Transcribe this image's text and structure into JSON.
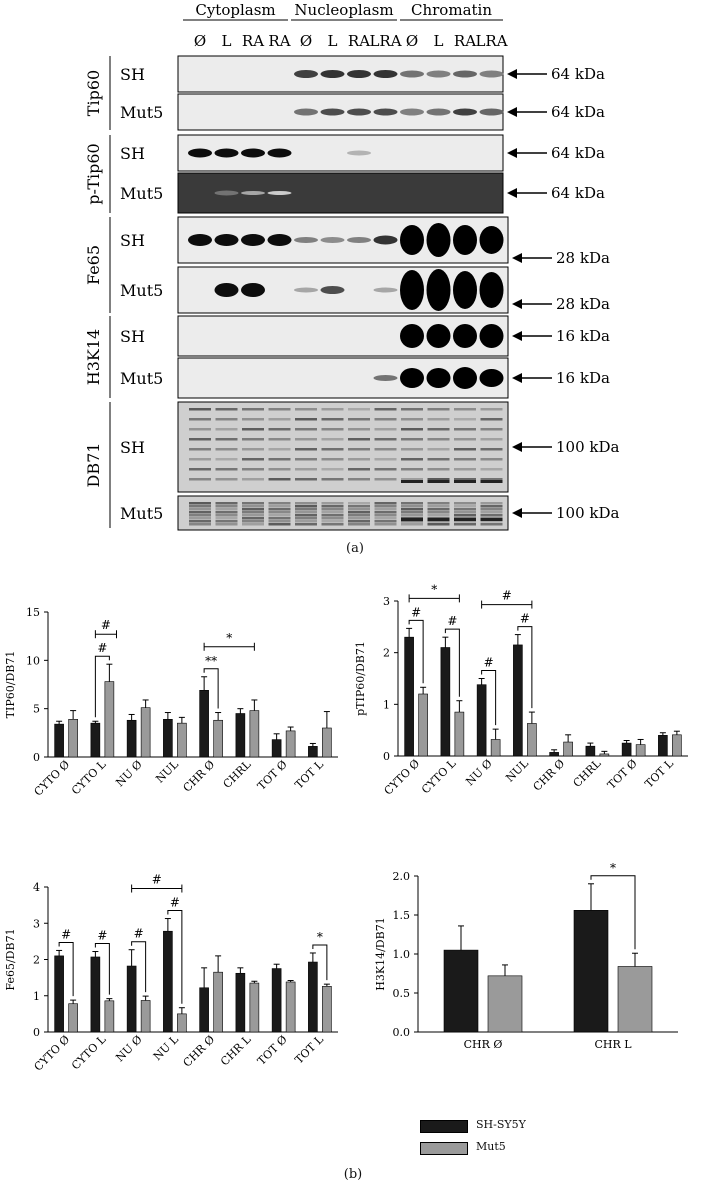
{
  "panel_a": {
    "caption": "(a)",
    "fractions": [
      "Cytoplasm",
      "Nucleoplasm",
      "Chromatin"
    ],
    "lanes": [
      "Ø",
      "L",
      "RA",
      "RA",
      "Ø",
      "L",
      "RA",
      "LRA",
      "Ø",
      "L",
      "RA",
      "LRA"
    ],
    "blots": [
      {
        "protein": "Tip60",
        "rows": [
          {
            "cell": "SH",
            "marker": "64 kDa"
          },
          {
            "cell": "Mut5",
            "marker": "64 kDa"
          }
        ]
      },
      {
        "protein": "p-Tip60",
        "rows": [
          {
            "cell": "SH",
            "marker": "64 kDa"
          },
          {
            "cell": "Mut5",
            "marker": "64 kDa"
          }
        ]
      },
      {
        "protein": "Fe65",
        "rows": [
          {
            "cell": "SH",
            "marker": "28 kDa"
          },
          {
            "cell": "Mut5",
            "marker": "28 kDa"
          }
        ]
      },
      {
        "protein": "H3K14",
        "rows": [
          {
            "cell": "SH",
            "marker": "16 kDa"
          },
          {
            "cell": "Mut5",
            "marker": "16 kDa"
          }
        ]
      },
      {
        "protein": "DB71",
        "rows": [
          {
            "cell": "SH",
            "marker": "100 kDa"
          },
          {
            "cell": "Mut5",
            "marker": "100 kDa"
          }
        ]
      }
    ]
  },
  "panel_b": {
    "caption": "(b)",
    "legend": [
      {
        "label": "SH-SY5Y",
        "color": "#1a1a1a"
      },
      {
        "label": "Mut5",
        "color": "#9a9a9a"
      }
    ]
  },
  "chart_data": [
    {
      "type": "bar",
      "ylabel": "TIP60/DB71",
      "ylim": [
        0,
        15
      ],
      "yticks": [
        "0",
        "5",
        "10",
        "15"
      ],
      "categories": [
        "CYTO Ø",
        "CYTO L",
        "NU Ø",
        "NUL",
        "CHR Ø",
        "CHRL",
        "TOT Ø",
        "TOT L"
      ],
      "series": [
        {
          "name": "SH-SY5Y",
          "values": [
            3.4,
            3.5,
            3.8,
            3.9,
            6.9,
            4.5,
            1.8,
            1.1
          ],
          "errors": [
            0.3,
            0.2,
            0.6,
            0.7,
            1.4,
            0.5,
            0.6,
            0.3
          ]
        },
        {
          "name": "Mut5",
          "values": [
            3.9,
            7.8,
            5.1,
            3.5,
            3.8,
            4.8,
            2.7,
            3.0
          ],
          "errors": [
            0.9,
            1.8,
            0.8,
            0.6,
            0.8,
            1.1,
            0.4,
            1.7
          ]
        }
      ],
      "annotations": [
        {
          "text": "#",
          "type": "span",
          "from": 1,
          "to": 1.5
        },
        {
          "text": "#",
          "type": "pair",
          "at": 1
        },
        {
          "text": "*",
          "type": "span",
          "from": 4,
          "to": 5
        },
        {
          "text": "**",
          "type": "pair",
          "at": 4
        }
      ]
    },
    {
      "type": "bar",
      "ylabel": "pTIP60/DB71",
      "ylim": [
        0,
        3
      ],
      "yticks": [
        "0",
        "1",
        "2",
        "3"
      ],
      "categories": [
        "CYTO Ø",
        "CYTO L",
        "NU Ø",
        "NUL",
        "CHR Ø",
        "CHRL",
        "TOT Ø",
        "TOT L"
      ],
      "series": [
        {
          "name": "SH-SY5Y",
          "values": [
            2.3,
            2.1,
            1.38,
            2.15,
            0.07,
            0.19,
            0.25,
            0.4
          ],
          "errors": [
            0.17,
            0.2,
            0.12,
            0.2,
            0.05,
            0.06,
            0.05,
            0.05
          ]
        },
        {
          "name": "Mut5",
          "values": [
            1.2,
            0.85,
            0.32,
            0.63,
            0.27,
            0.04,
            0.22,
            0.41
          ],
          "errors": [
            0.13,
            0.22,
            0.2,
            0.22,
            0.14,
            0.05,
            0.1,
            0.07
          ]
        }
      ],
      "annotations": [
        {
          "text": "#",
          "type": "pair",
          "at": 0
        },
        {
          "text": "#",
          "type": "pair",
          "at": 1
        },
        {
          "text": "*",
          "type": "span",
          "from": 0,
          "to": 1
        },
        {
          "text": "#",
          "type": "pair",
          "at": 2
        },
        {
          "text": "#",
          "type": "pair",
          "at": 3
        },
        {
          "text": "#",
          "type": "span",
          "from": 2,
          "to": 3
        }
      ]
    },
    {
      "type": "bar",
      "ylabel": "Fe65/DB71",
      "ylim": [
        0,
        4
      ],
      "yticks": [
        "0",
        "1",
        "2",
        "3",
        "4"
      ],
      "categories": [
        "CYTO Ø",
        "CYTO L",
        "NU Ø",
        "NU L",
        "CHR Ø",
        "CHR L",
        "TOT Ø",
        "TOT L"
      ],
      "series": [
        {
          "name": "SH-SY5Y",
          "values": [
            2.1,
            2.07,
            1.82,
            2.78,
            1.22,
            1.62,
            1.75,
            1.93
          ],
          "errors": [
            0.15,
            0.15,
            0.45,
            0.35,
            0.55,
            0.15,
            0.12,
            0.25
          ]
        },
        {
          "name": "Mut5",
          "values": [
            0.78,
            0.86,
            0.87,
            0.5,
            1.65,
            1.35,
            1.38,
            1.26
          ],
          "errors": [
            0.1,
            0.06,
            0.12,
            0.17,
            0.45,
            0.05,
            0.04,
            0.06
          ]
        }
      ],
      "annotations": [
        {
          "text": "#",
          "type": "pair",
          "at": 0
        },
        {
          "text": "#",
          "type": "pair",
          "at": 1
        },
        {
          "text": "#",
          "type": "pair",
          "at": 2
        },
        {
          "text": "#",
          "type": "pair",
          "at": 3
        },
        {
          "text": "#",
          "type": "span",
          "from": 2,
          "to": 3
        },
        {
          "text": "*",
          "type": "pair",
          "at": 7
        }
      ]
    },
    {
      "type": "bar",
      "ylabel": "H3K14/DB71",
      "ylim": [
        0,
        2
      ],
      "yticks": [
        "0.0",
        "0.5",
        "1.0",
        "1.5",
        "2.0"
      ],
      "categories": [
        "CHR Ø",
        "CHR L"
      ],
      "series": [
        {
          "name": "SH-SY5Y",
          "values": [
            1.05,
            1.56
          ],
          "errors": [
            0.31,
            0.34
          ]
        },
        {
          "name": "Mut5",
          "values": [
            0.72,
            0.84
          ],
          "errors": [
            0.14,
            0.17
          ]
        }
      ],
      "annotations": [
        {
          "text": "*",
          "type": "pair",
          "at": 1
        }
      ]
    }
  ]
}
